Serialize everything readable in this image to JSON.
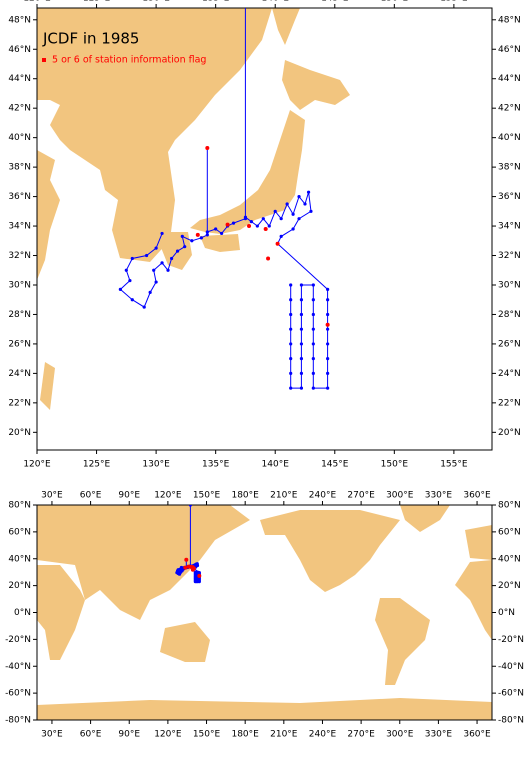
{
  "title": "JCDF in 1985",
  "legend_label": "5 or 6 of station information flag",
  "panels": [
    {
      "xlim": [
        120,
        158.2
      ],
      "ylim": [
        18.8,
        48.8
      ],
      "xticks": [
        {
          "value": 120,
          "label": "120°E"
        },
        {
          "value": 125,
          "label": "125°E"
        },
        {
          "value": 130,
          "label": "130°E"
        },
        {
          "value": 135,
          "label": "135°E"
        },
        {
          "value": 140,
          "label": "140°E"
        },
        {
          "value": 145,
          "label": "145°E"
        },
        {
          "value": 150,
          "label": "150°E"
        },
        {
          "value": 155,
          "label": "155°E"
        }
      ],
      "yticks": [
        {
          "value": 20,
          "label": "20°N"
        },
        {
          "value": 22,
          "label": "22°N"
        },
        {
          "value": 24,
          "label": "24°N"
        },
        {
          "value": 26,
          "label": "26°N"
        },
        {
          "value": 28,
          "label": "28°N"
        },
        {
          "value": 30,
          "label": "30°N"
        },
        {
          "value": 32,
          "label": "32°N"
        },
        {
          "value": 34,
          "label": "34°N"
        },
        {
          "value": 36,
          "label": "36°N"
        },
        {
          "value": 38,
          "label": "38°N"
        },
        {
          "value": 40,
          "label": "40°N"
        },
        {
          "value": 42,
          "label": "42°N"
        },
        {
          "value": 44,
          "label": "44°N"
        },
        {
          "value": 46,
          "label": "46°N"
        },
        {
          "value": 48,
          "label": "48°N"
        }
      ]
    },
    {
      "xlim": [
        18.4,
        371.6
      ],
      "ylim": [
        -80,
        80
      ],
      "xticks": [
        {
          "value": 30,
          "label": "30°E"
        },
        {
          "value": 60,
          "label": "60°E"
        },
        {
          "value": 90,
          "label": "90°E"
        },
        {
          "value": 120,
          "label": "120°E"
        },
        {
          "value": 150,
          "label": "150°E"
        },
        {
          "value": 180,
          "label": "180°E"
        },
        {
          "value": 210,
          "label": "210°E"
        },
        {
          "value": 240,
          "label": "240°E"
        },
        {
          "value": 270,
          "label": "270°E"
        },
        {
          "value": 300,
          "label": "300°E"
        },
        {
          "value": 330,
          "label": "330°E"
        },
        {
          "value": 360,
          "label": "360°E"
        }
      ],
      "yticks": [
        {
          "value": -80,
          "label": "-80°N"
        },
        {
          "value": -60,
          "label": "-60°N"
        },
        {
          "value": -40,
          "label": "-40°N"
        },
        {
          "value": -20,
          "label": "-20°N"
        },
        {
          "value": 0,
          "label": "0°N"
        },
        {
          "value": 20,
          "label": "20°N"
        },
        {
          "value": 40,
          "label": "40°N"
        },
        {
          "value": 60,
          "label": "60°N"
        },
        {
          "value": 80,
          "label": "80°N"
        }
      ]
    }
  ],
  "track": {
    "color": "#0000ff",
    "lon": [
      130.5,
      130,
      129.2,
      128,
      127.5,
      127.8,
      127,
      128,
      129,
      129.5,
      130,
      129.8,
      130.5,
      131,
      131.3,
      131.8,
      132.4,
      132.2,
      133,
      133.8,
      134.3,
      134.3,
      134.3,
      135,
      135.5,
      136,
      136.5,
      137.5,
      137.5,
      137.5,
      138,
      138.5,
      139,
      139.5,
      140,
      140.5,
      141,
      141.5,
      142,
      142.5,
      142.8,
      143,
      142,
      141.5,
      140.5,
      140.2,
      144.4,
      144.4,
      144.4,
      144.4,
      144.4,
      144.4,
      144.4,
      144.4,
      143.2,
      143.2,
      143.2,
      143.2,
      143.2,
      143.2,
      143.2,
      143.2,
      142.2,
      142.2,
      142.2,
      142.2,
      142.2,
      142.2,
      142.2,
      142.2,
      141.3,
      141.3,
      141.3,
      141.3,
      141.3,
      141.3,
      141.3,
      141.3
    ],
    "lat": [
      33.5,
      32.5,
      32,
      31.8,
      31,
      30.3,
      29.7,
      29,
      28.5,
      29.5,
      30.2,
      31,
      31.5,
      31,
      31.8,
      32.3,
      32.6,
      33.3,
      33,
      33.2,
      33.4,
      39.3,
      33.6,
      33.8,
      33.5,
      34,
      34.2,
      34.5,
      80,
      34.6,
      34.3,
      34,
      34.5,
      34,
      35,
      34.5,
      35.5,
      34.8,
      36,
      35.5,
      36.3,
      35,
      34.5,
      33.8,
      33.3,
      32.8,
      29.7,
      29,
      28,
      27,
      26,
      25,
      24,
      23,
      23,
      24,
      25,
      26,
      27,
      28,
      29,
      30,
      30,
      29,
      28,
      27,
      26,
      25,
      24,
      23,
      23,
      24,
      25,
      26,
      27,
      28,
      29,
      30
    ]
  },
  "flagged": {
    "color": "#ff0000",
    "lon": [
      134.3,
      133.5,
      136,
      137.8,
      139.2,
      140.2,
      139.4,
      144.4
    ],
    "lat": [
      39.3,
      33.4,
      34.1,
      34.0,
      33.8,
      32.8,
      31.8,
      27.3
    ]
  }
}
